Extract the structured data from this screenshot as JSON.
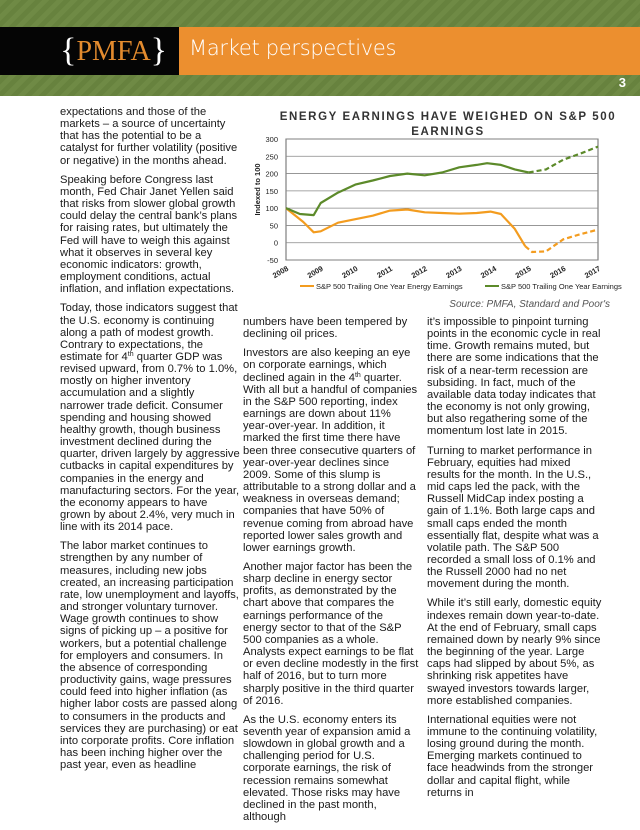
{
  "header": {
    "logo": "PMFA",
    "title": "Market perspectives",
    "page_number": "3",
    "colors": {
      "banner": "#6f8a45",
      "accent": "#ec8f2f",
      "logo_bg": "#050505"
    }
  },
  "column1": [
    "expectations and those of the markets – a source of uncertainty that has the potential to be a catalyst for further volatility (positive or negative) in the months ahead.",
    "Speaking before Congress last month, Fed Chair Janet Yellen said that risks from slower global growth could delay the central bank’s plans for raising rates, but ultimately the Fed will have to weigh this against what it observes in several key economic indicators: growth, employment conditions, actual inflation, and inflation expectations.",
    "Today, those indicators suggest that the U.S. economy is continuing along a path of modest growth. Contrary to expectations, the estimate for 4th quarter GDP was revised upward, from 0.7% to 1.0%, mostly on higher inventory accumulation and a slightly narrower trade deficit. Consumer spending and housing showed healthy growth, though business investment declined during the quarter, driven largely by aggressive cutbacks in capital expenditures by companies in the energy and manufacturing sectors. For the year, the economy appears to have grown by about 2.4%, very much in line with its 2014 pace.",
    "The labor market continues to strengthen by any number of measures, including new jobs created, an increasing participation rate, low unemployment and layoffs, and stronger voluntary turnover. Wage growth continues to show signs of picking up – a positive for workers, but a potential challenge for employers and consumers. In the absence of corresponding productivity gains, wage pressures could feed into higher inflation (as higher labor costs are passed along to consumers in the products and services they are purchasing) or eat into corporate profits. Core inflation has been inching higher over the past year, even as headline"
  ],
  "column2": [
    "numbers have been tempered by declining oil prices.",
    "Investors are also keeping an eye on corporate earnings, which declined again in the 4th quarter. With all but a handful of companies in the S&P 500 reporting, index earnings are down about 11% year-over-year. In addition, it marked the first time there have been three consecutive quarters of year-over-year declines since 2009. Some of this slump is attributable to a strong dollar and a weakness in overseas demand; companies that have 50% of revenue coming from abroad have reported lower sales growth and lower earnings growth.",
    "Another major factor has been the sharp decline in energy sector profits, as demonstrated by the chart above that compares the earnings performance of the energy sector to that of the S&P 500 companies as a whole. Analysts expect earnings to be flat or even decline modestly in the first half of 2016, but to turn more sharply positive in the third quarter of 2016.",
    "As the U.S. economy enters its seventh year of expansion amid a slowdown in global growth and a challenging period for U.S. corporate earnings, the risk of recession remains somewhat elevated. Those risks may have declined in the past month, although"
  ],
  "column3": [
    "it’s impossible to pinpoint turning points in the economic cycle in real time. Growth remains muted, but there are some indications that the risk of a near-term recession are subsiding. In fact, much of the available data today indicates that the economy is not only growing, but also regathering some of the momentum lost late in 2015.",
    "Turning to market performance in February, equities had mixed results for the month. In the U.S., mid caps led the pack, with the Russell MidCap index posting a gain of 1.1%. Both large caps and small caps ended the month essentially flat, despite what was a volatile path. The S&P 500 recorded a small loss of 0.1% and the Russell 2000 had no net movement during the month.",
    "While it’s still early, domestic equity indexes remain down year-to-date. At the end of February, small caps remained down by nearly 9% since the beginning of the year. Large caps had slipped by about 5%, as shrinking risk appetites have swayed investors towards larger, more established companies.",
    "International equities were not immune to the continuing volatility, losing ground during the month. Emerging markets continued to face headwinds from the stronger dollar and capital flight, while returns in"
  ],
  "chart_data": {
    "type": "line",
    "title": "ENERGY EARNINGS HAVE WEIGHED ON S&P 500 EARNINGS",
    "ylabel": "Indexed to 100",
    "xlabel": "",
    "ylim": [
      -50,
      300
    ],
    "yticks": [
      -50,
      0,
      50,
      100,
      150,
      200,
      250,
      300
    ],
    "xlim": [
      2008,
      2017
    ],
    "xticks": [
      "2008",
      "2009",
      "2010",
      "2011",
      "2012",
      "2013",
      "2014",
      "2015",
      "2016",
      "2017"
    ],
    "grid": true,
    "legend": "bottom",
    "source": "Source: PMFA, Standard and Poor's",
    "series": [
      {
        "name": "S&P 500 Trailing One Year Energy Earnings",
        "color": "#f39c1f",
        "actual": [
          [
            2008,
            100
          ],
          [
            2008.5,
            60
          ],
          [
            2008.8,
            30
          ],
          [
            2009,
            33
          ],
          [
            2009.5,
            58
          ],
          [
            2010,
            68
          ],
          [
            2010.5,
            78
          ],
          [
            2011,
            93
          ],
          [
            2011.5,
            96
          ],
          [
            2012,
            88
          ],
          [
            2012.5,
            86
          ],
          [
            2013,
            84
          ],
          [
            2013.5,
            86
          ],
          [
            2013.9,
            90
          ],
          [
            2014.2,
            83
          ],
          [
            2014.6,
            40
          ],
          [
            2014.9,
            -10
          ]
        ],
        "forecast": [
          [
            2014.9,
            -10
          ],
          [
            2015.1,
            -27
          ],
          [
            2015.5,
            -25
          ],
          [
            2016,
            10
          ],
          [
            2016.5,
            25
          ],
          [
            2017,
            38
          ]
        ]
      },
      {
        "name": "S&P 500 Trailing One Year Earnings",
        "color": "#5c8a2a",
        "actual": [
          [
            2008,
            100
          ],
          [
            2008.4,
            83
          ],
          [
            2008.8,
            80
          ],
          [
            2009,
            115
          ],
          [
            2009.5,
            145
          ],
          [
            2010,
            168
          ],
          [
            2010.5,
            180
          ],
          [
            2011,
            193
          ],
          [
            2011.5,
            200
          ],
          [
            2012,
            195
          ],
          [
            2012.5,
            203
          ],
          [
            2013,
            218
          ],
          [
            2013.5,
            225
          ],
          [
            2013.8,
            230
          ],
          [
            2014.2,
            225
          ],
          [
            2014.6,
            212
          ],
          [
            2015,
            203
          ]
        ],
        "forecast": [
          [
            2015,
            203
          ],
          [
            2015.5,
            212
          ],
          [
            2016,
            240
          ],
          [
            2016.5,
            258
          ],
          [
            2017,
            278
          ]
        ]
      }
    ]
  }
}
